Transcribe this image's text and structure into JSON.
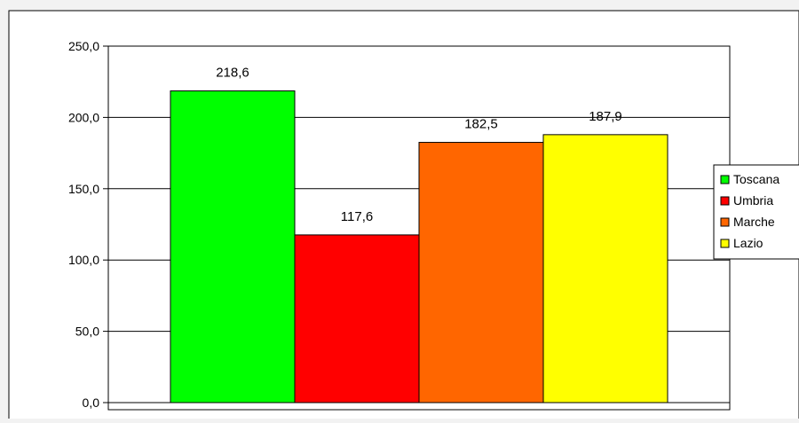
{
  "chart_data": {
    "type": "bar",
    "categories": [
      "Toscana",
      "Umbria",
      "Marche",
      "Lazio"
    ],
    "values": [
      218.6,
      117.6,
      182.5,
      187.9
    ],
    "value_labels": [
      "218,6",
      "117,6",
      "182,5",
      "187,9"
    ],
    "colors": [
      "#00ff00",
      "#ff0000",
      "#ff6600",
      "#ffff00"
    ],
    "ylim": [
      0,
      250
    ],
    "yticks": [
      0,
      50,
      100,
      150,
      200,
      250
    ],
    "ytick_labels": [
      "0,0",
      "50,0",
      "100,0",
      "150,0",
      "200,0",
      "250,0"
    ],
    "grid": true,
    "legend": {
      "placement": "right",
      "entries": [
        "Toscana",
        "Umbria",
        "Marche",
        "Lazio"
      ]
    },
    "title": "",
    "xlabel": "",
    "ylabel": ""
  }
}
